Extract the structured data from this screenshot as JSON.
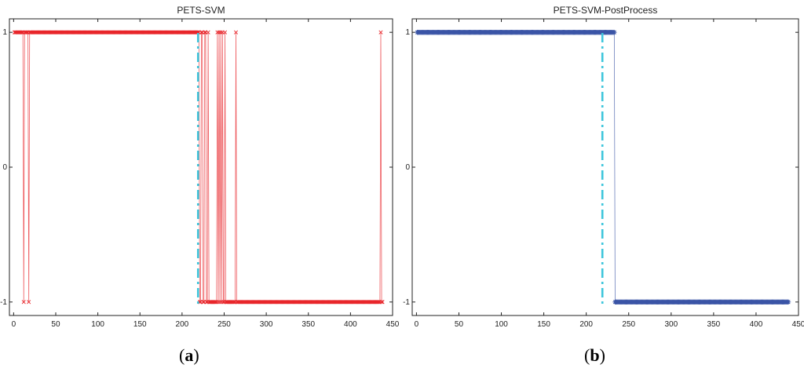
{
  "captions": {
    "left": {
      "open": "(",
      "letter": "a",
      "close": ")"
    },
    "right": {
      "open": "(",
      "letter": "b",
      "close": ")"
    }
  },
  "chart_data": [
    {
      "type": "line",
      "title": "PETS-SVM",
      "xlabel": "",
      "ylabel": "",
      "xlim": [
        -5,
        450
      ],
      "ylim": [
        -1.1,
        1.1
      ],
      "xticks": [
        0,
        50,
        100,
        150,
        200,
        250,
        300,
        350,
        400,
        450
      ],
      "xtick_labels": [
        "0",
        "50",
        "100",
        "150",
        "200",
        "250",
        "300",
        "350",
        "400",
        "450"
      ],
      "yticks": [
        -1,
        0,
        1
      ],
      "ytick_labels": [
        "-1",
        "0",
        "1"
      ],
      "grid": false,
      "marker": "x",
      "color": "#e8262b",
      "boundary_line": {
        "x": 219,
        "color": "#3ec6dc",
        "style": "dash-dot"
      },
      "series": [
        {
          "segments": [
            {
              "from": 1,
              "to": 11,
              "value": 1
            },
            {
              "from": 12,
              "to": 12,
              "value": -1
            },
            {
              "from": 13,
              "to": 17,
              "value": 1
            },
            {
              "from": 18,
              "to": 18,
              "value": -1
            },
            {
              "from": 19,
              "to": 220,
              "value": 1
            },
            {
              "from": 221,
              "to": 222,
              "value": -1
            },
            {
              "from": 223,
              "to": 224,
              "value": 1
            },
            {
              "from": 225,
              "to": 226,
              "value": -1
            },
            {
              "from": 227,
              "to": 228,
              "value": 1
            },
            {
              "from": 229,
              "to": 230,
              "value": -1
            },
            {
              "from": 231,
              "to": 231,
              "value": 1
            },
            {
              "from": 232,
              "to": 241,
              "value": -1
            },
            {
              "from": 242,
              "to": 242,
              "value": 1
            },
            {
              "from": 243,
              "to": 243,
              "value": -1
            },
            {
              "from": 244,
              "to": 244,
              "value": 1
            },
            {
              "from": 245,
              "to": 245,
              "value": -1
            },
            {
              "from": 246,
              "to": 246,
              "value": 1
            },
            {
              "from": 247,
              "to": 247,
              "value": -1
            },
            {
              "from": 248,
              "to": 248,
              "value": 1
            },
            {
              "from": 249,
              "to": 250,
              "value": -1
            },
            {
              "from": 251,
              "to": 251,
              "value": 1
            },
            {
              "from": 252,
              "to": 263,
              "value": -1
            },
            {
              "from": 264,
              "to": 264,
              "value": 1
            },
            {
              "from": 265,
              "to": 435,
              "value": -1
            },
            {
              "from": 436,
              "to": 436,
              "value": 1
            },
            {
              "from": 437,
              "to": 438,
              "value": -1
            }
          ]
        }
      ]
    },
    {
      "type": "line",
      "title": "PETS-SVM-PostProcess",
      "xlabel": "",
      "ylabel": "",
      "xlim": [
        -5,
        450
      ],
      "ylim": [
        -1.1,
        1.1
      ],
      "xticks": [
        0,
        50,
        100,
        150,
        200,
        250,
        300,
        350,
        400,
        450
      ],
      "xtick_labels": [
        "0",
        "50",
        "100",
        "150",
        "200",
        "250",
        "300",
        "350",
        "400",
        "450"
      ],
      "yticks": [
        -1,
        0,
        1
      ],
      "ytick_labels": [
        "-1",
        "0",
        "1"
      ],
      "grid": false,
      "marker": "*",
      "color": "#3b55a6",
      "boundary_line": {
        "x": 219,
        "color": "#3ec6dc",
        "style": "dash-dot"
      },
      "series": [
        {
          "segments": [
            {
              "from": 1,
              "to": 233,
              "value": 1
            },
            {
              "from": 234,
              "to": 438,
              "value": -1
            }
          ]
        }
      ]
    }
  ]
}
